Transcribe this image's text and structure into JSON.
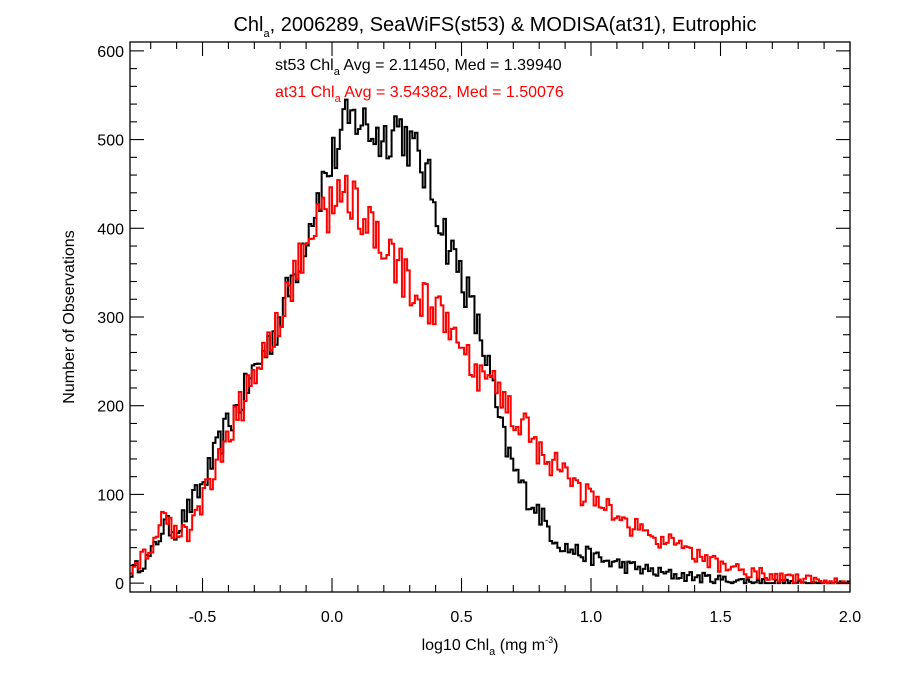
{
  "chart_data": {
    "type": "line",
    "title_parts": {
      "a": "Chl",
      "sub": "a",
      "b": ", 2006289, SeaWiFS(st53) & MODISA(at31), Eutrophic"
    },
    "xlabel_parts": {
      "a": "log10 Chl",
      "sub": "a",
      "b": " (mg m",
      "sup": "-3",
      "c": ")"
    },
    "ylabel": "Number of Observations",
    "xlim": [
      -0.78,
      2.0
    ],
    "ylim": [
      -10,
      610
    ],
    "x_ticks": [
      -0.5,
      0.0,
      0.5,
      1.0,
      1.5,
      2.0
    ],
    "x_tick_labels": [
      "-0.5",
      "0.0",
      "0.5",
      "1.0",
      "1.5",
      "2.0"
    ],
    "y_ticks": [
      0,
      100,
      200,
      300,
      400,
      500,
      600
    ],
    "y_tick_labels": [
      "0",
      "100",
      "200",
      "300",
      "400",
      "500",
      "600"
    ],
    "x_minor_step": 0.1,
    "y_minor_step": 20,
    "grid": false,
    "annotations": [
      {
        "pre": "st53 Chl",
        "sub": "a",
        "post": " Avg = 2.11450, Med = 1.39940",
        "color": "#000000"
      },
      {
        "pre": "at31 Chl",
        "sub": "a",
        "post": " Avg = 3.54382, Med = 1.50076",
        "color": "#ff0000"
      }
    ],
    "series": [
      {
        "color": "#000000",
        "points": [
          [
            -0.78,
            12
          ],
          [
            -0.7,
            30
          ],
          [
            -0.65,
            65
          ],
          [
            -0.6,
            60
          ],
          [
            -0.55,
            85
          ],
          [
            -0.5,
            110
          ],
          [
            -0.45,
            145
          ],
          [
            -0.4,
            180
          ],
          [
            -0.35,
            205
          ],
          [
            -0.3,
            240
          ],
          [
            -0.25,
            265
          ],
          [
            -0.2,
            300
          ],
          [
            -0.15,
            345
          ],
          [
            -0.1,
            395
          ],
          [
            -0.05,
            440
          ],
          [
            0.0,
            475
          ],
          [
            0.05,
            515
          ],
          [
            0.1,
            525
          ],
          [
            0.15,
            510
          ],
          [
            0.2,
            500
          ],
          [
            0.25,
            520
          ],
          [
            0.3,
            495
          ],
          [
            0.35,
            470
          ],
          [
            0.4,
            430
          ],
          [
            0.45,
            380
          ],
          [
            0.5,
            350
          ],
          [
            0.55,
            300
          ],
          [
            0.6,
            250
          ],
          [
            0.65,
            175
          ],
          [
            0.7,
            130
          ],
          [
            0.75,
            100
          ],
          [
            0.8,
            80
          ],
          [
            0.85,
            55
          ],
          [
            0.9,
            40
          ],
          [
            0.95,
            35
          ],
          [
            1.0,
            30
          ],
          [
            1.05,
            25
          ],
          [
            1.1,
            22
          ],
          [
            1.15,
            18
          ],
          [
            1.2,
            16
          ],
          [
            1.25,
            12
          ],
          [
            1.3,
            10
          ],
          [
            1.4,
            7
          ],
          [
            1.5,
            4
          ],
          [
            1.6,
            2
          ],
          [
            1.7,
            1
          ],
          [
            1.8,
            0
          ],
          [
            2.0,
            0
          ]
        ]
      },
      {
        "color": "#ff0000",
        "points": [
          [
            -0.78,
            15
          ],
          [
            -0.7,
            35
          ],
          [
            -0.65,
            80
          ],
          [
            -0.6,
            50
          ],
          [
            -0.55,
            60
          ],
          [
            -0.5,
            95
          ],
          [
            -0.45,
            125
          ],
          [
            -0.4,
            160
          ],
          [
            -0.35,
            200
          ],
          [
            -0.3,
            235
          ],
          [
            -0.25,
            270
          ],
          [
            -0.2,
            300
          ],
          [
            -0.15,
            340
          ],
          [
            -0.1,
            380
          ],
          [
            -0.05,
            415
          ],
          [
            0.0,
            425
          ],
          [
            0.05,
            440
          ],
          [
            0.1,
            430
          ],
          [
            0.15,
            395
          ],
          [
            0.2,
            370
          ],
          [
            0.25,
            360
          ],
          [
            0.3,
            335
          ],
          [
            0.35,
            320
          ],
          [
            0.4,
            305
          ],
          [
            0.45,
            290
          ],
          [
            0.5,
            260
          ],
          [
            0.55,
            235
          ],
          [
            0.6,
            225
          ],
          [
            0.65,
            215
          ],
          [
            0.7,
            190
          ],
          [
            0.75,
            175
          ],
          [
            0.8,
            150
          ],
          [
            0.85,
            135
          ],
          [
            0.9,
            120
          ],
          [
            0.95,
            105
          ],
          [
            1.0,
            95
          ],
          [
            1.05,
            85
          ],
          [
            1.1,
            75
          ],
          [
            1.15,
            65
          ],
          [
            1.2,
            58
          ],
          [
            1.25,
            50
          ],
          [
            1.3,
            45
          ],
          [
            1.35,
            38
          ],
          [
            1.4,
            32
          ],
          [
            1.45,
            26
          ],
          [
            1.5,
            20
          ],
          [
            1.6,
            14
          ],
          [
            1.7,
            8
          ],
          [
            1.8,
            5
          ],
          [
            1.9,
            2
          ],
          [
            2.0,
            0
          ]
        ]
      }
    ]
  }
}
